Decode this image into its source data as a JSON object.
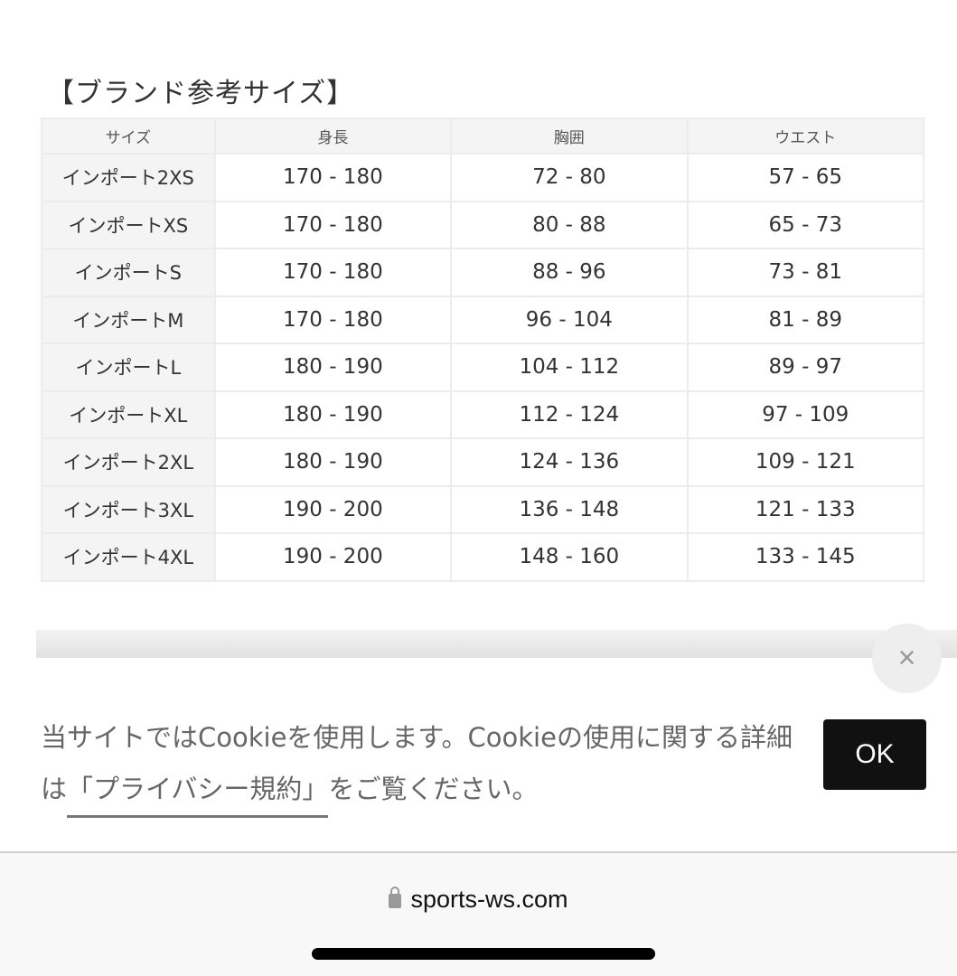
{
  "heading": "【ブランド参考サイズ】",
  "table": {
    "headers": [
      "サイズ",
      "身長",
      "胸囲",
      "ウエスト"
    ],
    "rows": [
      [
        "インポート2XS",
        "170 - 180",
        "72 - 80",
        "57 - 65"
      ],
      [
        "インポートXS",
        "170 - 180",
        "80 - 88",
        "65 - 73"
      ],
      [
        "インポートS",
        "170 - 180",
        "88 - 96",
        "73 - 81"
      ],
      [
        "インポートM",
        "170 - 180",
        "96 - 104",
        "81 - 89"
      ],
      [
        "インポートL",
        "180 - 190",
        "104 - 112",
        "89 - 97"
      ],
      [
        "インポートXL",
        "180 - 190",
        "112 - 124",
        "97 - 109"
      ],
      [
        "インポート2XL",
        "180 - 190",
        "124 - 136",
        "109 - 121"
      ],
      [
        "インポート3XL",
        "190 - 200",
        "136 - 148",
        "121 - 133"
      ],
      [
        "インポート4XL",
        "190 - 200",
        "148 - 160",
        "133 - 145"
      ]
    ]
  },
  "cookie": {
    "text_before": "当サイトではCookieを使用します。Cookieの使用に関する詳細は",
    "link": "「プライバシー規約」",
    "text_after": "をご覧ください。",
    "ok_label": "OK",
    "close_icon": "×"
  },
  "browser": {
    "url": "sports-ws.com",
    "lock_icon": "lock-icon"
  }
}
